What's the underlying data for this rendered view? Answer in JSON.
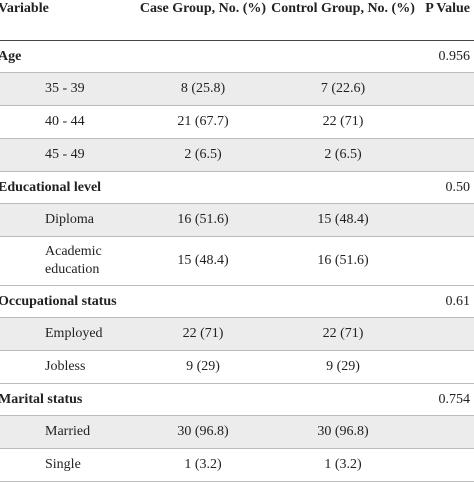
{
  "header": {
    "variable": "Variable",
    "case_group": "Case Group, No. (%)",
    "control_group": "Control Group, No. (%)",
    "p_value": "P Value"
  },
  "sections": [
    {
      "label": "Age",
      "p_value": "0.956",
      "rows": [
        {
          "label": "35 - 39",
          "case": "8 (25.8)",
          "control": "7 (22.6)"
        },
        {
          "label": "40 - 44",
          "case": "21 (67.7)",
          "control": "22 (71)"
        },
        {
          "label": "45 - 49",
          "case": "2 (6.5)",
          "control": "2 (6.5)"
        }
      ]
    },
    {
      "label": "Educational level",
      "p_value": "0.50",
      "rows": [
        {
          "label": "Diploma",
          "case": "16 (51.6)",
          "control": "15 (48.4)"
        },
        {
          "label": "Academic education",
          "case": "15 (48.4)",
          "control": "16 (51.6)"
        }
      ]
    },
    {
      "label": "Occupational status",
      "p_value": "0.61",
      "rows": [
        {
          "label": "Employed",
          "case": "22 (71)",
          "control": "22 (71)"
        },
        {
          "label": "Jobless",
          "case": "9 (29)",
          "control": "9 (29)"
        }
      ]
    },
    {
      "label": "Marital status",
      "p_value": "0.754",
      "rows": [
        {
          "label": "Married",
          "case": "30 (96.8)",
          "control": "30 (96.8)"
        },
        {
          "label": "Single",
          "case": "1 (3.2)",
          "control": "1 (3.2)"
        }
      ]
    }
  ]
}
